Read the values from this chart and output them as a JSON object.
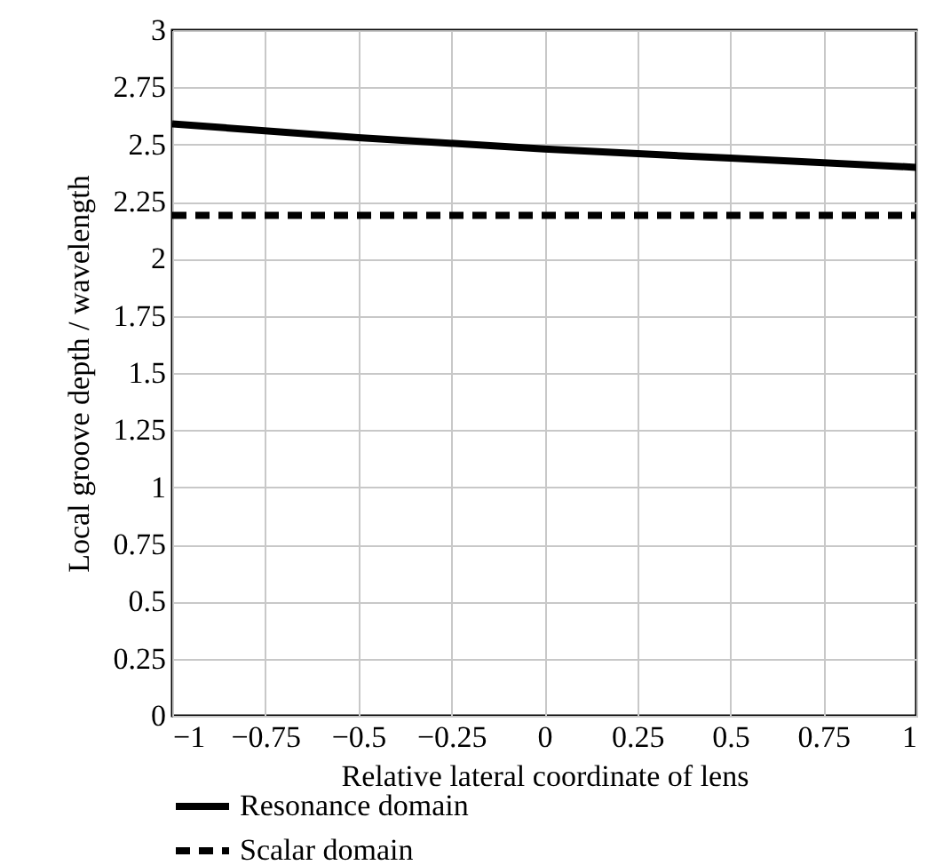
{
  "chart_data": {
    "type": "line",
    "xlabel": "Relative lateral coordinate of lens",
    "ylabel": "Local groove depth / wavelength",
    "xlim": [
      -1,
      1
    ],
    "ylim": [
      0,
      3
    ],
    "xticks": [
      {
        "value": -1,
        "label": "−1"
      },
      {
        "value": -0.75,
        "label": "−0.75"
      },
      {
        "value": -0.5,
        "label": "−0.5"
      },
      {
        "value": -0.25,
        "label": "−0.25"
      },
      0,
      0.25,
      0.5,
      0.75,
      1
    ],
    "yticks": [
      0,
      0.25,
      0.5,
      0.75,
      1,
      1.25,
      1.5,
      1.75,
      2,
      2.25,
      2.5,
      2.75,
      3
    ],
    "grid": true,
    "legend": "bottom",
    "series": [
      {
        "name": "Resonance domain",
        "color": "#000000",
        "line_style": "solid",
        "x": [
          -1,
          -0.5,
          0,
          0.5,
          1
        ],
        "values": [
          2.59,
          2.53,
          2.48,
          2.44,
          2.4
        ]
      },
      {
        "name": "Scalar domain",
        "color": "#000000",
        "line_style": "dashed",
        "x": [
          -1,
          1
        ],
        "values": [
          2.19,
          2.19
        ]
      }
    ]
  }
}
